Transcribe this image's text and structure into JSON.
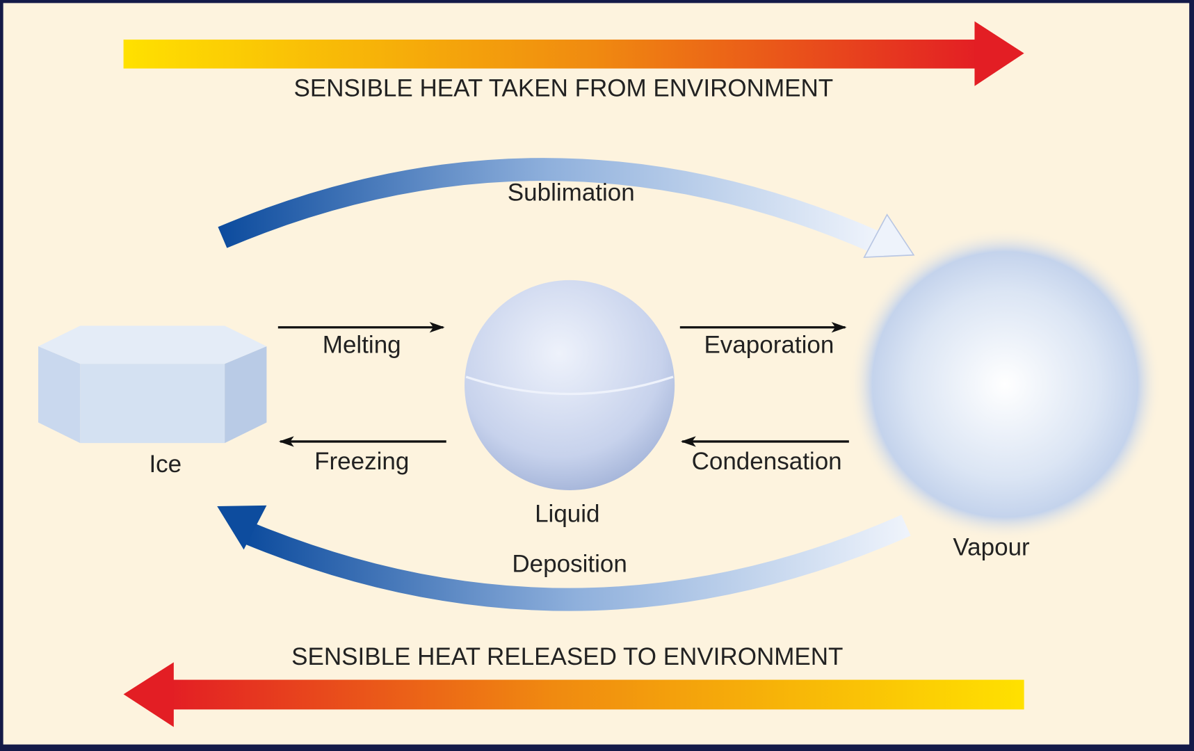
{
  "heat": {
    "taken": "SENSIBLE HEAT TAKEN FROM ENVIRONMENT",
    "released": "SENSIBLE HEAT RELEASED TO ENVIRONMENT"
  },
  "processes": {
    "sublimation": "Sublimation",
    "melting": "Melting",
    "evaporation": "Evaporation",
    "freezing": "Freezing",
    "condensation": "Condensation",
    "deposition": "Deposition"
  },
  "states": {
    "ice": "Ice",
    "liquid": "Liquid",
    "vapour": "Vapour"
  }
}
